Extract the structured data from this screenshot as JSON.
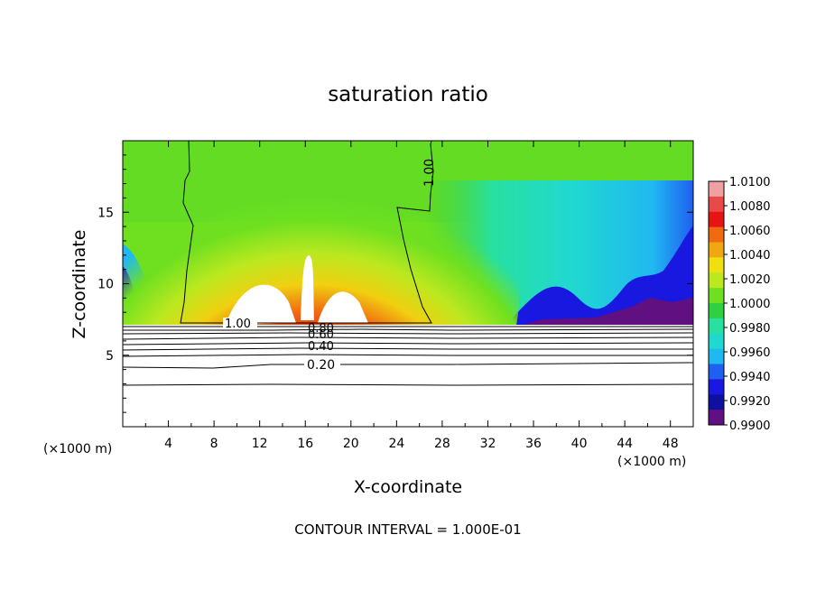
{
  "chart_data": {
    "type": "heatmap",
    "title": "saturation ratio",
    "xlabel": "X-coordinate",
    "ylabel": "Z-coordinate",
    "x_unit": "(×1000 m)",
    "z_unit": "(×1000 m)",
    "xlim": [
      0,
      50
    ],
    "ylim": [
      0,
      20
    ],
    "x_ticks": [
      4,
      8,
      12,
      16,
      20,
      24,
      28,
      32,
      36,
      40,
      44,
      48
    ],
    "y_ticks": [
      5,
      10,
      15
    ],
    "footer": "CONTOUR INTERVAL = 1.000E-01",
    "colorbar": {
      "levels": [
        "1.0100",
        "1.0080",
        "1.0060",
        "1.0040",
        "1.0020",
        "1.0000",
        "0.9980",
        "0.9960",
        "0.9940",
        "0.9920",
        "0.9900"
      ],
      "colors": [
        "#f0a0a0",
        "#e84a4a",
        "#e81414",
        "#f06a10",
        "#f0a810",
        "#f0e010",
        "#bce820",
        "#6ee020",
        "#30d040",
        "#28e0a0",
        "#20d8d0",
        "#20b8f0",
        "#2060f0",
        "#1818e0",
        "#1010a0",
        "#601080"
      ]
    },
    "contours": [
      {
        "label": "1.00",
        "z_label": 7.1,
        "x_label": 8.5
      },
      {
        "label": "0.80",
        "z_label": 6.6,
        "x_label": 17
      },
      {
        "label": "0.60",
        "z_label": 6.3,
        "x_label": 17
      },
      {
        "label": "0.40",
        "z_label": 5.6,
        "x_label": 17
      },
      {
        "label": "0.20",
        "z_label": 4.4,
        "x_label": 17
      },
      {
        "label": "1.00",
        "z_label": 18,
        "x_label": 26.6
      }
    ],
    "cloud_boundary": [
      [
        5.2,
        20
      ],
      [
        5.5,
        17
      ],
      [
        6.0,
        14
      ],
      [
        5.3,
        10
      ],
      [
        5.2,
        7.2
      ],
      [
        26.8,
        7.2
      ],
      [
        26,
        10
      ],
      [
        24.8,
        13
      ],
      [
        24.3,
        15.2
      ],
      [
        26.5,
        14.8
      ],
      [
        27,
        16.5
      ],
      [
        27,
        20
      ]
    ]
  }
}
